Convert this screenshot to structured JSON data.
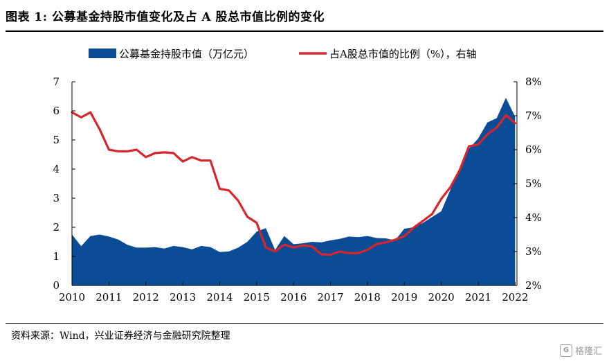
{
  "figure": {
    "title": "图表 1:  公募基金持股市值变化及占 A 股总市值比例的变化",
    "source": "资料来源：Wind，兴业证券经济与金融研究院整理",
    "watermark": "格隆汇"
  },
  "chart_data": {
    "type": "area",
    "x_ticks": [
      "2010",
      "2011",
      "2012",
      "2013",
      "2014",
      "2015",
      "2016",
      "2017",
      "2018",
      "2019",
      "2020",
      "2021",
      "2022"
    ],
    "x_range": [
      2010,
      2022.05
    ],
    "y_left": {
      "range": [
        0,
        7
      ],
      "ticks": [
        "0",
        "1",
        "2",
        "3",
        "4",
        "5",
        "6",
        "7"
      ]
    },
    "y_right": {
      "range": [
        2,
        8
      ],
      "ticks": [
        "2%",
        "3%",
        "4%",
        "5%",
        "6%",
        "7%",
        "8%"
      ]
    },
    "legend_position": "top",
    "grid": false,
    "series": [
      {
        "name": "公募基金持股市值（万亿元）",
        "kind": "area",
        "axis": "left",
        "color": "#0B4C96",
        "x": [
          2010.0,
          2010.25,
          2010.5,
          2010.75,
          2011.0,
          2011.25,
          2011.5,
          2011.75,
          2012.0,
          2012.25,
          2012.5,
          2012.75,
          2013.0,
          2013.25,
          2013.5,
          2013.75,
          2014.0,
          2014.25,
          2014.5,
          2014.75,
          2015.0,
          2015.25,
          2015.5,
          2015.75,
          2016.0,
          2016.25,
          2016.5,
          2016.75,
          2017.0,
          2017.25,
          2017.5,
          2017.75,
          2018.0,
          2018.25,
          2018.5,
          2018.75,
          2019.0,
          2019.25,
          2019.5,
          2019.75,
          2020.0,
          2020.25,
          2020.5,
          2020.75,
          2021.0,
          2021.25,
          2021.5,
          2021.75,
          2022.0
        ],
        "values": [
          1.75,
          1.35,
          1.7,
          1.75,
          1.68,
          1.58,
          1.4,
          1.3,
          1.3,
          1.32,
          1.27,
          1.36,
          1.32,
          1.24,
          1.36,
          1.32,
          1.15,
          1.17,
          1.3,
          1.5,
          1.85,
          1.97,
          1.22,
          1.7,
          1.42,
          1.45,
          1.5,
          1.48,
          1.55,
          1.6,
          1.68,
          1.66,
          1.7,
          1.63,
          1.62,
          1.55,
          1.95,
          2.0,
          2.15,
          2.35,
          2.55,
          3.3,
          4.05,
          4.7,
          5.05,
          5.6,
          5.75,
          6.45,
          5.8
        ]
      },
      {
        "name": "占A股总市值的比例（%），右轴",
        "kind": "line",
        "axis": "right",
        "color": "#D7262B",
        "x": [
          2010.0,
          2010.25,
          2010.5,
          2010.75,
          2011.0,
          2011.25,
          2011.5,
          2011.75,
          2012.0,
          2012.25,
          2012.5,
          2012.75,
          2013.0,
          2013.25,
          2013.5,
          2013.75,
          2014.0,
          2014.25,
          2014.5,
          2014.75,
          2015.0,
          2015.25,
          2015.5,
          2015.75,
          2016.0,
          2016.25,
          2016.5,
          2016.75,
          2017.0,
          2017.25,
          2017.5,
          2017.75,
          2018.0,
          2018.25,
          2018.5,
          2018.75,
          2019.0,
          2019.25,
          2019.5,
          2019.75,
          2020.0,
          2020.25,
          2020.5,
          2020.75,
          2021.0,
          2021.25,
          2021.5,
          2021.75,
          2022.0
        ],
        "values": [
          7.1,
          6.95,
          7.1,
          6.6,
          6.0,
          5.95,
          5.95,
          6.0,
          5.78,
          5.9,
          5.92,
          5.9,
          5.65,
          5.78,
          5.68,
          5.68,
          4.85,
          4.8,
          4.5,
          4.02,
          3.85,
          3.12,
          3.0,
          3.2,
          3.12,
          3.18,
          3.15,
          2.92,
          2.9,
          3.0,
          2.95,
          2.95,
          3.05,
          3.22,
          3.27,
          3.35,
          3.45,
          3.7,
          3.9,
          4.1,
          4.55,
          4.9,
          5.4,
          6.1,
          6.15,
          6.45,
          6.65,
          7.02,
          6.78
        ]
      }
    ]
  }
}
